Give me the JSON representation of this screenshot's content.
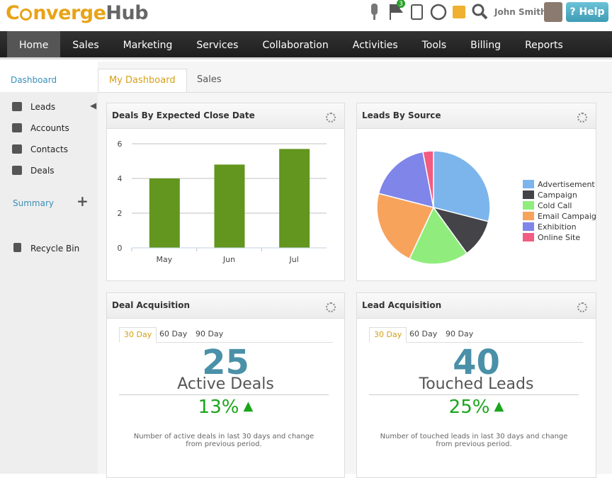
{
  "header": {
    "logo_left": "C",
    "logo_mid": "nverge",
    "logo_right": "Hub",
    "badge": "3",
    "user": "John Smith",
    "help": "Help"
  },
  "nav": [
    "Home",
    "Sales",
    "Marketing",
    "Services",
    "Collaboration",
    "Activities",
    "Tools",
    "Billing",
    "Reports"
  ],
  "sidebar": {
    "dashboard": "Dashboard",
    "items": [
      "Leads",
      "Accounts",
      "Contacts",
      "Deals"
    ],
    "summary": "Summary",
    "recycle": "Recycle Bin"
  },
  "tabs": [
    "My Dashboard",
    "Sales"
  ],
  "chart_data": [
    {
      "type": "bar",
      "title": "Deals By Expected Close Date",
      "categories": [
        "May",
        "Jun",
        "Jul"
      ],
      "values": [
        4,
        4.8,
        5.7
      ],
      "color": "#62961e",
      "ylim": [
        0,
        6
      ],
      "yticks": [
        0,
        2,
        4,
        6
      ],
      "grid": true
    },
    {
      "type": "pie",
      "title": "Leads By Source",
      "categories": [
        "Advertisement",
        "Campaign",
        "Cold Call",
        "Email Campaign",
        "Exhibition",
        "Online Site"
      ],
      "values": [
        29,
        11,
        17,
        22,
        18,
        3
      ],
      "colors": [
        "#7cb5ec",
        "#434348",
        "#90ed7d",
        "#f7a35c",
        "#8085e9",
        "#f15c80"
      ],
      "legend": "right"
    }
  ],
  "acquisition": [
    {
      "title": "Deal Acquisition",
      "periods": [
        "30 Day",
        "60 Day",
        "90 Day"
      ],
      "count": "25",
      "label": "Active Deals",
      "change": "13%",
      "note": "Number of active deals in last 30 days and change from previous period."
    },
    {
      "title": "Lead Acquisition",
      "periods": [
        "30 Day",
        "60 Day",
        "90 Day"
      ],
      "count": "40",
      "label": "Touched Leads",
      "change": "25%",
      "note": "Number of touched leads in last 30 days and change from previous period."
    }
  ]
}
